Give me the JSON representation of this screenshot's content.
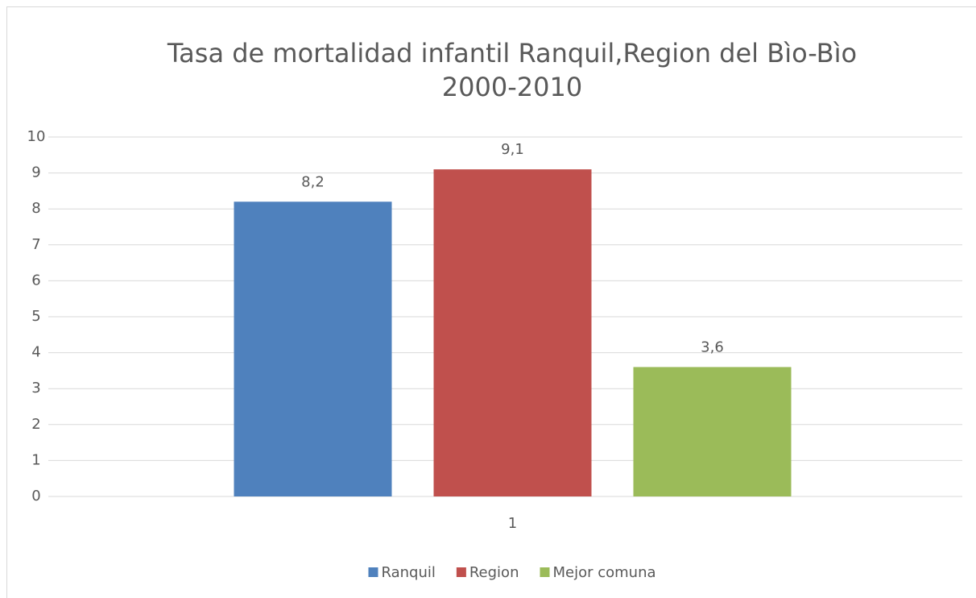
{
  "chart_data": {
    "type": "bar",
    "title": [
      "Tasa de mortalidad infantil Ranquil,Region del Bìo-Bìo",
      "2000-2010"
    ],
    "categories": [
      "1"
    ],
    "series": [
      {
        "name": "Ranquil",
        "color": "#4f81bd",
        "values": [
          8.2
        ],
        "value_labels": [
          "8,2"
        ]
      },
      {
        "name": "Region",
        "color": "#c0504d",
        "values": [
          9.1
        ],
        "value_labels": [
          "9,1"
        ]
      },
      {
        "name": "Mejor comuna",
        "color": "#9bbb59",
        "values": [
          3.6
        ],
        "value_labels": [
          "3,6"
        ]
      }
    ],
    "ylim": [
      0,
      10
    ],
    "yticks": [
      0,
      1,
      2,
      3,
      4,
      5,
      6,
      7,
      8,
      9,
      10
    ],
    "grid": true,
    "legend": "bottom"
  }
}
